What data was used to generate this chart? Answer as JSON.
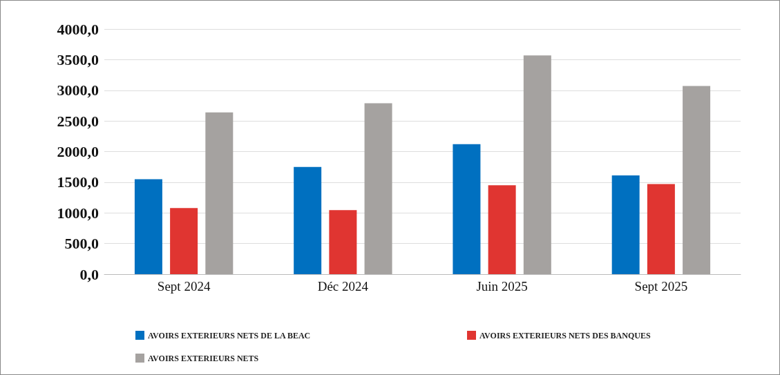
{
  "chart_data": {
    "type": "bar",
    "categories": [
      "Sept 2024",
      "Déc 2024",
      "Juin 2025",
      "Sept 2025"
    ],
    "series": [
      {
        "name": "AVOIRS EXTERIEURS NETS DE LA BEAC",
        "color": "#0070c0",
        "values": [
          1550,
          1750,
          2120,
          1610
        ]
      },
      {
        "name": "AVOIRS EXTERIEURS NETS DES BANQUES",
        "color": "#e03531",
        "values": [
          1080,
          1045,
          1450,
          1470
        ]
      },
      {
        "name": "AVOIRS EXTERIEURS NETS",
        "color": "#a5a2a0",
        "values": [
          2640,
          2790,
          3570,
          3070
        ]
      }
    ],
    "ylim": [
      0,
      4000
    ],
    "yticks": [
      {
        "value": 0,
        "label": "0,0"
      },
      {
        "value": 500,
        "label": "500,0"
      },
      {
        "value": 1000,
        "label": "1000,0"
      },
      {
        "value": 1500,
        "label": "1500,0"
      },
      {
        "value": 2000,
        "label": "2000,0"
      },
      {
        "value": 2500,
        "label": "2500,0"
      },
      {
        "value": 3000,
        "label": "3000,0"
      },
      {
        "value": 3500,
        "label": "3500,0"
      },
      {
        "value": 4000,
        "label": "4000,0"
      }
    ],
    "grid": "y",
    "legend": "bottom"
  }
}
